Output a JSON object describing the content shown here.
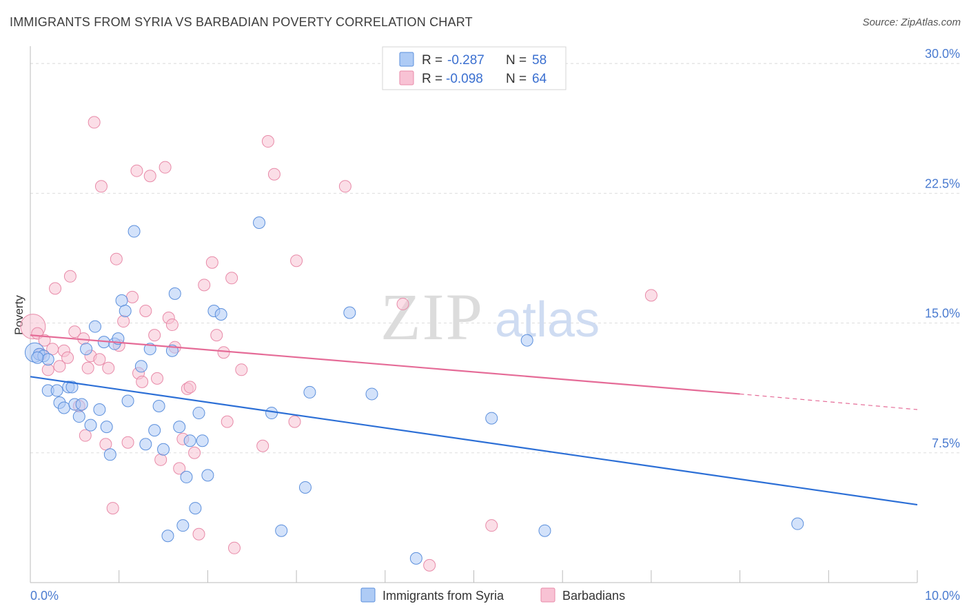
{
  "header": {
    "title": "IMMIGRANTS FROM SYRIA VS BARBADIAN POVERTY CORRELATION CHART",
    "source": "Source: ZipAtlas.com"
  },
  "watermark": {
    "zip": "ZIP",
    "atlas": "atlas"
  },
  "legend": {
    "r_label": "R =",
    "n_label": "N =",
    "items": [
      {
        "r": "-0.287",
        "n": "58"
      },
      {
        "r": "-0.098",
        "n": "64"
      }
    ]
  },
  "colors": {
    "syria_fill": "#aecbf5",
    "syria_stroke": "#5b8fdc",
    "syria_line": "#2c6fd6",
    "barb_fill": "#f8c2d4",
    "barb_stroke": "#e88aa8",
    "barb_line": "#e56b97",
    "tick_text": "#4a7bd0",
    "grid": "#dddddd"
  },
  "chart_data": {
    "type": "scatter",
    "title": "IMMIGRANTS FROM SYRIA VS BARBADIAN POVERTY CORRELATION CHART",
    "xlabel": "",
    "ylabel": "Poverty",
    "xlim": [
      0,
      10
    ],
    "ylim": [
      0,
      31
    ],
    "x_tick_labels": [
      "0.0%",
      "10.0%"
    ],
    "y_ticks": [
      7.5,
      15.0,
      22.5,
      30.0
    ],
    "y_tick_labels": [
      "7.5%",
      "15.0%",
      "22.5%",
      "30.0%"
    ],
    "grid": true,
    "legend_position": "top-center",
    "series": [
      {
        "name": "Immigrants from Syria",
        "r": -0.287,
        "n": 58,
        "trend": {
          "x": [
            0,
            10
          ],
          "y": [
            11.9,
            4.5
          ]
        },
        "points": [
          [
            0.05,
            13.3
          ],
          [
            0.1,
            13.2
          ],
          [
            0.15,
            13.1
          ],
          [
            0.2,
            12.9
          ],
          [
            0.08,
            13.0
          ],
          [
            0.2,
            11.1
          ],
          [
            0.3,
            11.1
          ],
          [
            0.33,
            10.4
          ],
          [
            0.38,
            10.1
          ],
          [
            0.43,
            11.3
          ],
          [
            0.47,
            11.3
          ],
          [
            0.5,
            10.3
          ],
          [
            0.55,
            9.6
          ],
          [
            0.58,
            10.3
          ],
          [
            0.63,
            13.5
          ],
          [
            0.68,
            9.1
          ],
          [
            0.73,
            14.8
          ],
          [
            0.78,
            10.0
          ],
          [
            0.83,
            13.9
          ],
          [
            0.86,
            9.0
          ],
          [
            0.9,
            7.4
          ],
          [
            0.95,
            13.8
          ],
          [
            0.99,
            14.1
          ],
          [
            1.03,
            16.3
          ],
          [
            1.07,
            15.7
          ],
          [
            1.1,
            10.5
          ],
          [
            1.17,
            20.3
          ],
          [
            1.25,
            12.5
          ],
          [
            1.3,
            8.0
          ],
          [
            1.35,
            13.5
          ],
          [
            1.4,
            8.8
          ],
          [
            1.45,
            10.2
          ],
          [
            1.5,
            7.7
          ],
          [
            1.55,
            2.7
          ],
          [
            1.6,
            13.4
          ],
          [
            1.63,
            16.7
          ],
          [
            1.68,
            9.0
          ],
          [
            1.72,
            3.3
          ],
          [
            1.76,
            6.1
          ],
          [
            1.8,
            8.2
          ],
          [
            1.86,
            4.3
          ],
          [
            1.9,
            9.8
          ],
          [
            1.94,
            8.2
          ],
          [
            2.0,
            6.2
          ],
          [
            2.07,
            15.7
          ],
          [
            2.15,
            15.5
          ],
          [
            2.58,
            20.8
          ],
          [
            2.72,
            9.8
          ],
          [
            2.83,
            3.0
          ],
          [
            3.1,
            5.5
          ],
          [
            3.15,
            11.0
          ],
          [
            3.6,
            15.6
          ],
          [
            3.85,
            10.9
          ],
          [
            4.35,
            1.4
          ],
          [
            5.2,
            9.5
          ],
          [
            5.6,
            14.0
          ],
          [
            5.8,
            3.0
          ],
          [
            8.65,
            3.4
          ]
        ]
      },
      {
        "name": "Barbadians",
        "r": -0.098,
        "n": 64,
        "trend": {
          "x": [
            0,
            8.0
          ],
          "y": [
            14.3,
            10.9
          ]
        },
        "trend_dashed": {
          "x": [
            8.0,
            10
          ],
          "y": [
            10.9,
            10.0
          ]
        },
        "points": [
          [
            0.03,
            14.8
          ],
          [
            0.08,
            14.4
          ],
          [
            0.12,
            13.2
          ],
          [
            0.16,
            14.0
          ],
          [
            0.2,
            12.3
          ],
          [
            0.25,
            13.5
          ],
          [
            0.28,
            17.0
          ],
          [
            0.33,
            12.5
          ],
          [
            0.38,
            13.4
          ],
          [
            0.42,
            13.0
          ],
          [
            0.45,
            17.7
          ],
          [
            0.5,
            14.5
          ],
          [
            0.55,
            10.2
          ],
          [
            0.6,
            14.1
          ],
          [
            0.62,
            8.5
          ],
          [
            0.65,
            12.4
          ],
          [
            0.68,
            13.1
          ],
          [
            0.72,
            26.6
          ],
          [
            0.78,
            12.9
          ],
          [
            0.8,
            22.9
          ],
          [
            0.85,
            8.0
          ],
          [
            0.88,
            12.4
          ],
          [
            0.93,
            4.3
          ],
          [
            0.97,
            18.7
          ],
          [
            1.0,
            13.7
          ],
          [
            1.05,
            15.1
          ],
          [
            1.1,
            8.1
          ],
          [
            1.15,
            16.5
          ],
          [
            1.2,
            23.8
          ],
          [
            1.22,
            12.1
          ],
          [
            1.26,
            11.6
          ],
          [
            1.3,
            15.7
          ],
          [
            1.35,
            23.5
          ],
          [
            1.4,
            14.3
          ],
          [
            1.43,
            11.8
          ],
          [
            1.47,
            7.1
          ],
          [
            1.52,
            24.0
          ],
          [
            1.56,
            15.3
          ],
          [
            1.6,
            14.9
          ],
          [
            1.63,
            13.6
          ],
          [
            1.68,
            6.6
          ],
          [
            1.72,
            8.3
          ],
          [
            1.77,
            11.2
          ],
          [
            1.8,
            11.3
          ],
          [
            1.85,
            7.5
          ],
          [
            1.9,
            2.8
          ],
          [
            1.96,
            17.2
          ],
          [
            2.05,
            18.5
          ],
          [
            2.1,
            14.3
          ],
          [
            2.18,
            13.3
          ],
          [
            2.22,
            9.3
          ],
          [
            2.27,
            17.6
          ],
          [
            2.3,
            2.0
          ],
          [
            2.38,
            12.3
          ],
          [
            2.62,
            7.9
          ],
          [
            2.68,
            25.5
          ],
          [
            2.75,
            23.6
          ],
          [
            2.98,
            9.3
          ],
          [
            3.0,
            18.6
          ],
          [
            3.55,
            22.9
          ],
          [
            4.2,
            16.1
          ],
          [
            4.5,
            1.0
          ],
          [
            5.2,
            3.3
          ],
          [
            7.0,
            16.6
          ]
        ]
      }
    ]
  },
  "bottom_legend": [
    {
      "label": "Immigrants from Syria"
    },
    {
      "label": "Barbadians"
    }
  ]
}
